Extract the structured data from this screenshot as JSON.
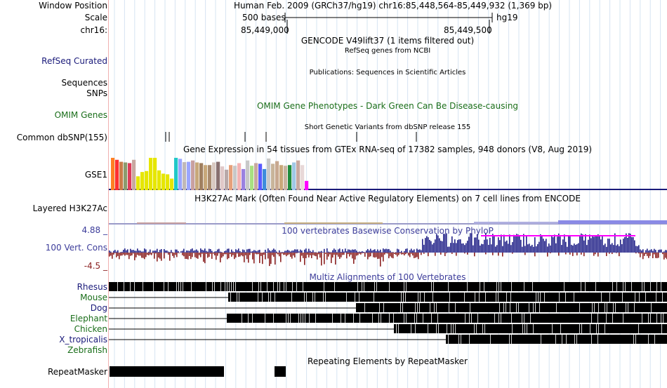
{
  "header": {
    "window_position_label": "Window Position",
    "window_position_value": "Human Feb. 2009 (GRCh37/hg19)   chr16:85,448,564-85,449,932 (1,369 bp)",
    "scale_label": "Scale",
    "scale_value": "500 bases",
    "assembly": "hg19",
    "chrom_label": "chr16:",
    "ruler_ticks": [
      "85,449,000",
      "85,449,500"
    ]
  },
  "tracks": {
    "gencode": {
      "title": "GENCODE V49lift37 (1 items filtered out)"
    },
    "refseq": {
      "label": "RefSeq Curated",
      "title": "RefSeq genes from NCBI",
      "color": "#1a1a7a"
    },
    "publications": {
      "title": "Publications: Sequences in Scientific Articles"
    },
    "sequences": {
      "label": "Sequences"
    },
    "snps": {
      "label": "SNPs"
    },
    "omim": {
      "label": "OMIM Genes",
      "title": "OMIM Gene Phenotypes - Dark Green Can Be Disease-causing",
      "color": "#1a6e1a"
    },
    "dbsnp": {
      "label": "Common dbSNP(155)",
      "title": "Short Genetic Variants from dbSNP release 155"
    },
    "gtex": {
      "title": "Gene Expression in 54 tissues from GTEx RNA-seq of 17382 samples, 948 donors (V8, Aug 2019)",
      "gene_label": "GSE1",
      "bar_levels": [
        0.98,
        0.92,
        0.86,
        0.84,
        0.82,
        0.92,
        0.42,
        0.55,
        0.58,
        0.98,
        0.98,
        0.6,
        0.5,
        0.48,
        0.35,
        0.98,
        0.95,
        0.85,
        0.86,
        0.9,
        0.84,
        0.82,
        0.76,
        0.76,
        0.84,
        0.86,
        0.72,
        0.62,
        0.76,
        0.74,
        0.82,
        0.64,
        0.9,
        0.74,
        0.82,
        0.8,
        0.64,
        0.96,
        0.8,
        0.88,
        0.76,
        0.74,
        0.76,
        0.84,
        0.9,
        0.76,
        0.28
      ],
      "bar_colors": [
        "#ff7f24",
        "#ff3030",
        "#c97c4a",
        "#8b9b6e",
        "#dc3c5a",
        "#c8a8a0",
        "#e6e600",
        "#e6e600",
        "#e6e600",
        "#e6e600",
        "#e6e600",
        "#e6e600",
        "#e6e600",
        "#e6e600",
        "#e6e600",
        "#20c8c8",
        "#9aa5ff",
        "#c0b8b8",
        "#9aa5ff",
        "#c8a0a0",
        "#c8a87a",
        "#a08060",
        "#c8a87a",
        "#a88a6e",
        "#d8c8c0",
        "#887070",
        "#e0c8c8",
        "#b8a8a8",
        "#e6a07a",
        "#c8c8c8",
        "#f4b4b4",
        "#9a80e0",
        "#c8c8c8",
        "#a8e080",
        "#c8a8a0",
        "#5a5aff",
        "#3c8cdc",
        "#c8c8c8",
        "#c8b49a",
        "#c8a890",
        "#c8a87a",
        "#c8b4a0",
        "#1e8c3c",
        "#a0c8e6",
        "#c8a8a0",
        "#e8d8d8",
        "#ff00ff"
      ]
    },
    "h3k27ac": {
      "label": "Layered H3K27Ac",
      "title": "H3K27Ac Mark (Often Found Near Active Regulatory Elements) on 7 cell lines from ENCODE"
    },
    "conservation": {
      "label": "100 Vert. Cons",
      "title": "100 vertebrates Basewise Conservation by PhyloP",
      "max_label": "4.88 _",
      "min_label": "-4.5 _",
      "label_color": "#3c3c9a",
      "pos_color": "#222288",
      "neg_color": "#8b2222",
      "clip_color": "#ff00ff"
    },
    "multiz": {
      "title": "Multiz Alignments of 100 Vertebrates",
      "species": [
        {
          "name": "Rhesus",
          "color": "#1a1a7a"
        },
        {
          "name": "Mouse",
          "color": "#1a6e1a"
        },
        {
          "name": "Dog",
          "color": "#1a1a7a"
        },
        {
          "name": "Elephant",
          "color": "#1a6e1a"
        },
        {
          "name": "Chicken",
          "color": "#1a6e1a"
        },
        {
          "name": "X_tropicalis",
          "color": "#1a1a7a"
        },
        {
          "name": "Zebrafish",
          "color": "#1a6e1a"
        }
      ]
    },
    "repeatmasker": {
      "label": "RepeatMasker",
      "title": "Repeating Elements by RepeatMasker"
    }
  }
}
